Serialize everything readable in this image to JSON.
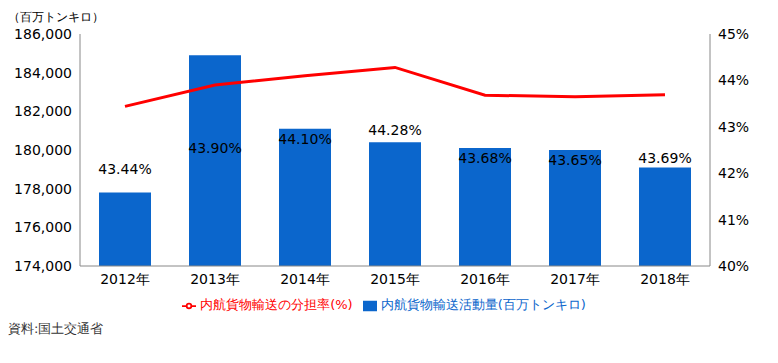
{
  "chart_data": {
    "type": "bar",
    "ylabel": "（百万トンキロ）",
    "note": "資料:国土交通省",
    "categories": [
      "2012年",
      "2013年",
      "2014年",
      "2015年",
      "2016年",
      "2017年",
      "2018年"
    ],
    "series": [
      {
        "name": "内航貨物輸送活動量(百万トンキロ)",
        "type": "bar",
        "color": "#0b66cc",
        "values": [
          177800,
          184900,
          181100,
          180400,
          180100,
          180000,
          179100
        ]
      },
      {
        "name": "内航貨物輸送の分担率(%)",
        "type": "line",
        "axis": "y2",
        "color": "#ff0000",
        "data_labels": true,
        "values": [
          43.44,
          43.9,
          44.1,
          44.28,
          43.68,
          43.65,
          43.69
        ],
        "value_labels": [
          "43.44%",
          "43.90%",
          "44.10%",
          "44.28%",
          "43.68%",
          "43.65%",
          "43.69%"
        ]
      }
    ],
    "ylim": [
      174000,
      186000
    ],
    "yticks": [
      {
        "value": 174000,
        "label": "174,000"
      },
      {
        "value": 176000,
        "label": "176,000"
      },
      {
        "value": 178000,
        "label": "178,000"
      },
      {
        "value": 180000,
        "label": "180,000"
      },
      {
        "value": 182000,
        "label": "182,000"
      },
      {
        "value": 184000,
        "label": "184,000"
      },
      {
        "value": 186000,
        "label": "186,000"
      }
    ],
    "y2lim": [
      40,
      45
    ],
    "y2ticks": [
      {
        "value": 40,
        "label": "40%"
      },
      {
        "value": 41,
        "label": "41%"
      },
      {
        "value": 42,
        "label": "42%"
      },
      {
        "value": 43,
        "label": "43%"
      },
      {
        "value": 44,
        "label": "44%"
      },
      {
        "value": 45,
        "label": "45%"
      }
    ],
    "grid": false,
    "legend": "bottom"
  }
}
